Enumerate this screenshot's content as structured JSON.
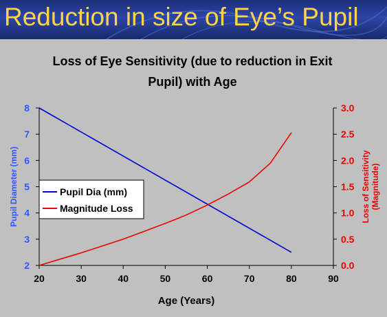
{
  "slide": {
    "title": "Reduction in size of Eye’s Pupil"
  },
  "chart_data": {
    "type": "line",
    "title_lines": [
      "Loss of Eye Sensitivity (due to reduction in Exit",
      "Pupil) with Age"
    ],
    "xlabel": "Age (Years)",
    "ylabel_left": "Pupil Diameter (mm)",
    "ylabel_right_lines": [
      "Loss of Sensitivity",
      "(Magnitude)"
    ],
    "xlim": [
      20,
      90
    ],
    "ylim_left": [
      2,
      8
    ],
    "ylim_right": [
      0,
      3
    ],
    "x_ticks": [
      "20",
      "30",
      "40",
      "50",
      "60",
      "70",
      "80",
      "90"
    ],
    "y_left_ticks": [
      "2",
      "3",
      "4",
      "5",
      "6",
      "7",
      "8"
    ],
    "y_right_ticks": [
      "0.0",
      "0.5",
      "1.0",
      "1.5",
      "2.0",
      "2.5",
      "3.0"
    ],
    "grid": false,
    "legend_position": "left-middle",
    "series": [
      {
        "name": "Pupil Dia (mm)",
        "axis": "left",
        "color": "#0000cc",
        "x": [
          20,
          80
        ],
        "y": [
          8.0,
          2.5
        ]
      },
      {
        "name": "Magnitude Loss",
        "axis": "right",
        "color": "#ee0000",
        "x": [
          20,
          25,
          30,
          35,
          40,
          45,
          50,
          55,
          60,
          65,
          70,
          75,
          80
        ],
        "y": [
          0.0,
          0.12,
          0.24,
          0.37,
          0.5,
          0.65,
          0.8,
          0.96,
          1.15,
          1.36,
          1.59,
          1.95,
          2.53
        ]
      }
    ],
    "colors": {
      "left_axis": "#3355ff",
      "right_axis": "#ee0000"
    }
  }
}
